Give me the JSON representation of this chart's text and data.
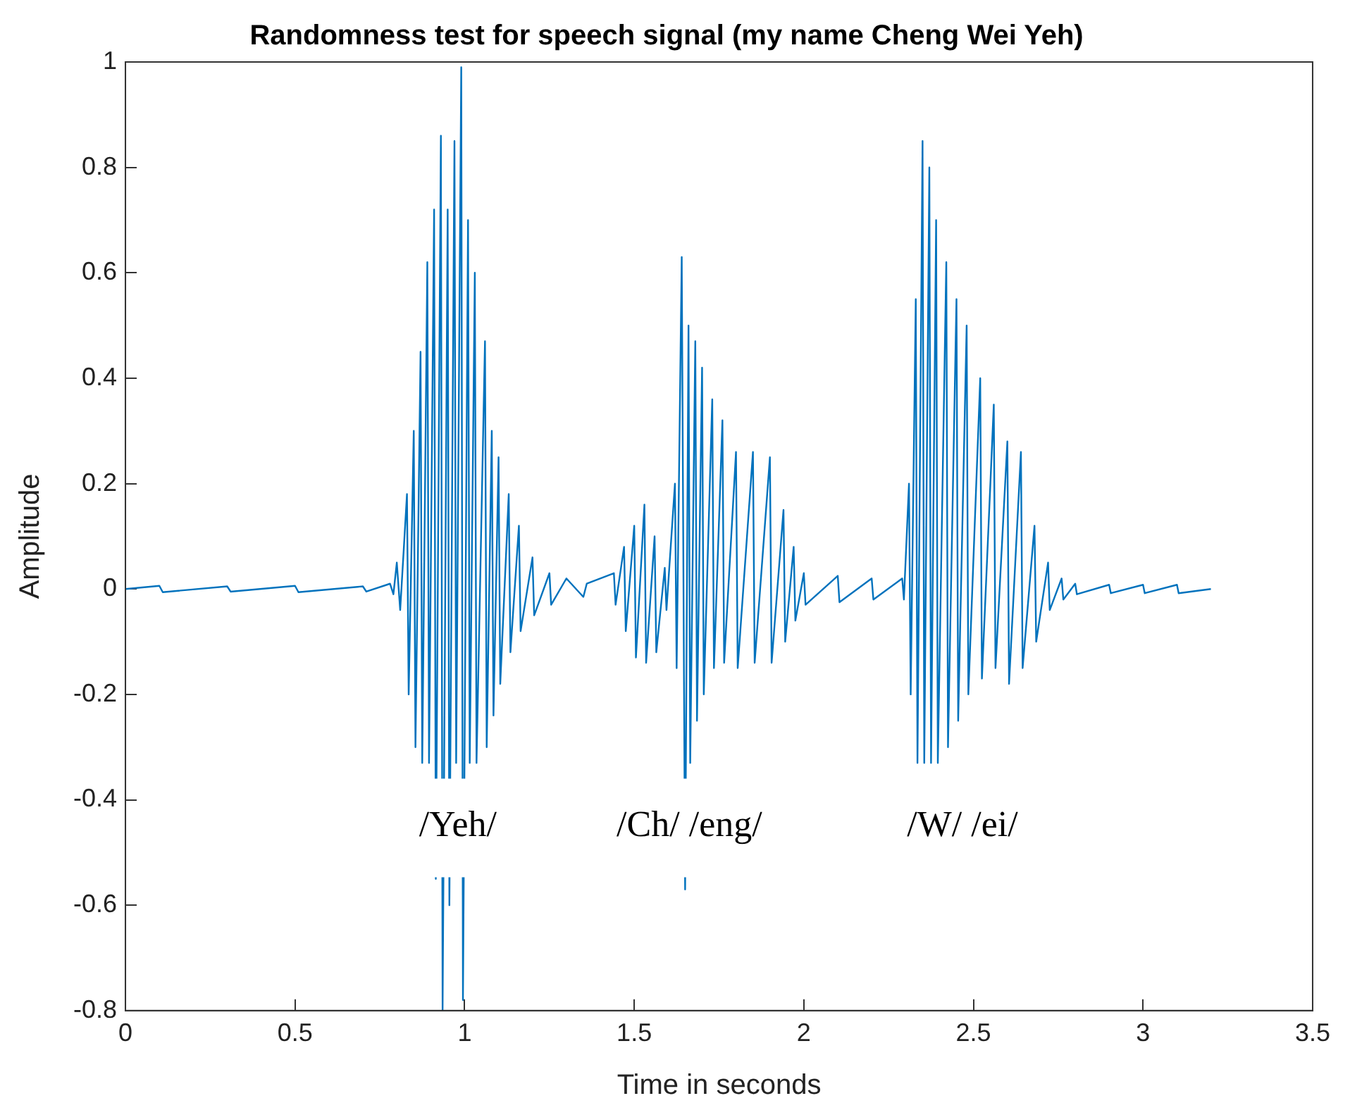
{
  "chart_data": {
    "type": "line",
    "title": "Randomness test for speech signal (my name Cheng Wei Yeh)",
    "xlabel": "Time in seconds",
    "ylabel": "Amplitude",
    "xlim": [
      0,
      3.5
    ],
    "xticks": [
      0,
      0.5,
      1,
      1.5,
      2,
      2.5,
      3,
      3.5
    ],
    "ylim": [
      -0.8,
      1
    ],
    "yticks": [
      -0.8,
      -0.6,
      -0.4,
      -0.2,
      0,
      0.2,
      0.4,
      0.6,
      0.8,
      1
    ],
    "grid": false,
    "legend": false,
    "marker": "none",
    "line_style": "solid",
    "annotations": [
      "/Yeh/",
      "/Ch/ /eng/",
      "/W/ /ei/"
    ],
    "series": [
      {
        "color": "#0072bd",
        "x": [
          0,
          0.1,
          0.11,
          0.3,
          0.31,
          0.5,
          0.51,
          0.7,
          0.71,
          0.78,
          0.79,
          0.8,
          0.81,
          0.83,
          0.835,
          0.85,
          0.855,
          0.87,
          0.875,
          0.89,
          0.895,
          0.91,
          0.915,
          0.93,
          0.935,
          0.95,
          0.955,
          0.97,
          0.975,
          0.99,
          0.995,
          1.01,
          1.015,
          1.03,
          1.035,
          1.06,
          1.065,
          1.08,
          1.085,
          1.1,
          1.105,
          1.13,
          1.135,
          1.16,
          1.165,
          1.2,
          1.205,
          1.25,
          1.255,
          1.3,
          1.35,
          1.36,
          1.44,
          1.445,
          1.47,
          1.475,
          1.5,
          1.505,
          1.53,
          1.535,
          1.56,
          1.565,
          1.59,
          1.595,
          1.62,
          1.625,
          1.64,
          1.65,
          1.66,
          1.665,
          1.68,
          1.685,
          1.7,
          1.705,
          1.73,
          1.735,
          1.76,
          1.765,
          1.8,
          1.805,
          1.85,
          1.855,
          1.9,
          1.905,
          1.94,
          1.945,
          1.97,
          1.975,
          2.0,
          2.005,
          2.1,
          2.105,
          2.2,
          2.205,
          2.29,
          2.295,
          2.31,
          2.315,
          2.33,
          2.335,
          2.35,
          2.355,
          2.37,
          2.375,
          2.39,
          2.395,
          2.42,
          2.425,
          2.45,
          2.455,
          2.48,
          2.485,
          2.52,
          2.525,
          2.56,
          2.565,
          2.6,
          2.605,
          2.64,
          2.645,
          2.68,
          2.685,
          2.72,
          2.725,
          2.76,
          2.765,
          2.8,
          2.805,
          2.9,
          2.905,
          3.0,
          3.005,
          3.1,
          3.105,
          3.2
        ],
        "values": [
          0,
          0.006,
          -0.006,
          0.005,
          -0.005,
          0.006,
          -0.006,
          0.005,
          -0.005,
          0.01,
          -0.01,
          0.05,
          -0.04,
          0.18,
          -0.2,
          0.3,
          -0.3,
          0.45,
          -0.33,
          0.62,
          -0.33,
          0.72,
          -0.55,
          0.86,
          -0.8,
          0.72,
          -0.6,
          0.85,
          -0.33,
          0.99,
          -0.78,
          0.7,
          -0.33,
          0.6,
          -0.33,
          0.47,
          -0.3,
          0.3,
          -0.24,
          0.25,
          -0.18,
          0.18,
          -0.12,
          0.12,
          -0.08,
          0.06,
          -0.05,
          0.03,
          -0.03,
          0.02,
          -0.015,
          0.01,
          0.03,
          -0.03,
          0.08,
          -0.08,
          0.12,
          -0.13,
          0.16,
          -0.14,
          0.1,
          -0.12,
          0.04,
          -0.04,
          0.2,
          -0.15,
          0.63,
          -0.57,
          0.5,
          -0.33,
          0.47,
          -0.25,
          0.42,
          -0.2,
          0.36,
          -0.15,
          0.32,
          -0.14,
          0.26,
          -0.15,
          0.26,
          -0.14,
          0.25,
          -0.14,
          0.15,
          -0.1,
          0.08,
          -0.06,
          0.03,
          -0.03,
          0.025,
          -0.025,
          0.02,
          -0.02,
          0.02,
          -0.02,
          0.2,
          -0.2,
          0.55,
          -0.33,
          0.85,
          -0.33,
          0.8,
          -0.33,
          0.7,
          -0.33,
          0.62,
          -0.3,
          0.55,
          -0.25,
          0.5,
          -0.2,
          0.4,
          -0.17,
          0.35,
          -0.15,
          0.28,
          -0.18,
          0.26,
          -0.15,
          0.12,
          -0.1,
          0.05,
          -0.04,
          0.02,
          -0.02,
          0.01,
          -0.01,
          0.008,
          -0.008,
          0.008,
          -0.008,
          0.008,
          -0.008,
          0
        ]
      }
    ]
  }
}
